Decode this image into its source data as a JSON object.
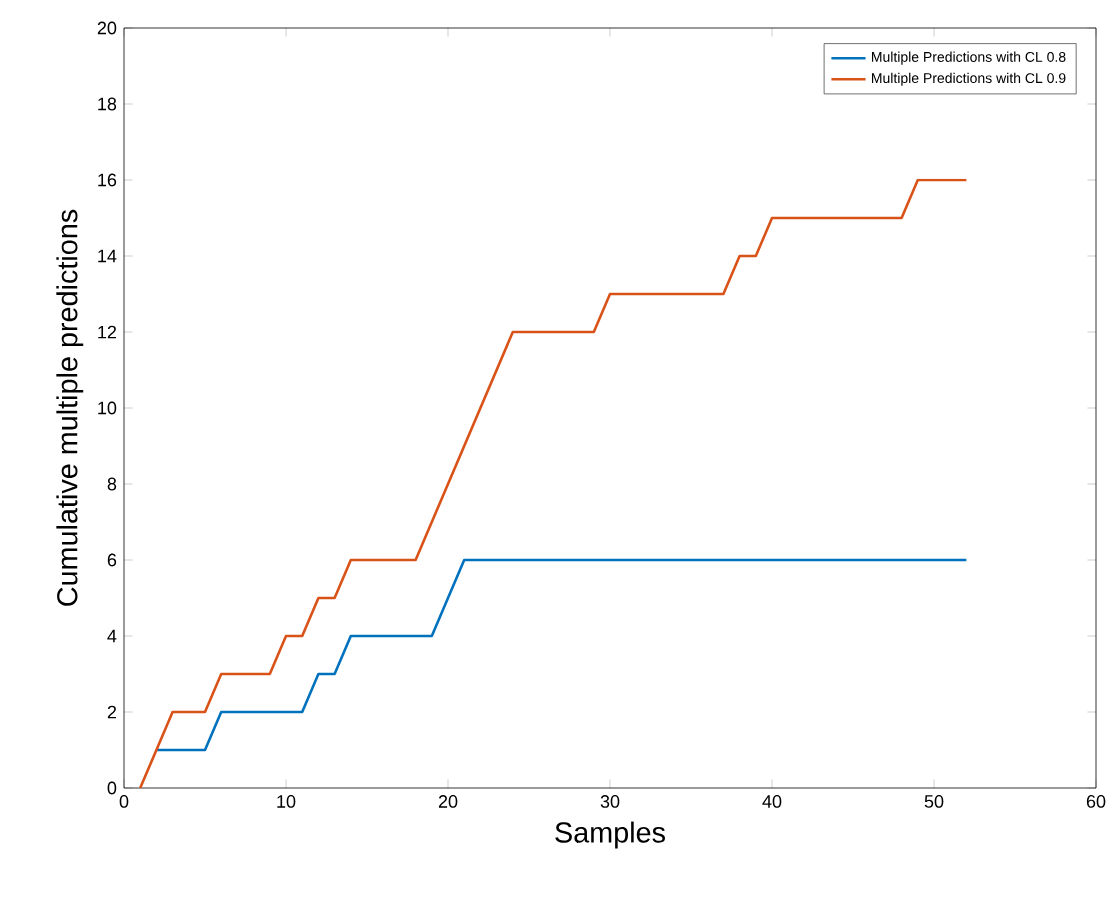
{
  "chart_data": {
    "type": "line",
    "xlabel": "Samples",
    "ylabel": "Cumulative multiple predictions",
    "xlim": [
      0,
      60
    ],
    "ylim": [
      0,
      20
    ],
    "xticks": [
      0,
      10,
      20,
      30,
      40,
      50,
      60
    ],
    "yticks": [
      0,
      2,
      4,
      6,
      8,
      10,
      12,
      14,
      16,
      18,
      20
    ],
    "legend": "top right",
    "grid": false,
    "marker": "none",
    "line_style": "solid",
    "series": [
      {
        "name": "Multiple Predictions with CL 0.8",
        "color": "#0072bd",
        "x": [
          2,
          5,
          6,
          11,
          12,
          13,
          14,
          19,
          21,
          52
        ],
        "values": [
          1,
          1,
          2,
          2,
          3,
          3,
          4,
          4,
          6,
          6
        ]
      },
      {
        "name": "Multiple Predictions with CL 0.9",
        "color": "#d95319",
        "x": [
          1,
          3,
          5,
          6,
          9,
          10,
          11,
          12,
          13,
          14,
          18,
          24,
          29,
          30,
          37,
          38,
          39,
          40,
          48,
          49,
          52
        ],
        "values": [
          0,
          2,
          2,
          3,
          3,
          4,
          4,
          5,
          5,
          6,
          6,
          12,
          12,
          13,
          13,
          14,
          14,
          15,
          15,
          16,
          16
        ]
      }
    ]
  }
}
